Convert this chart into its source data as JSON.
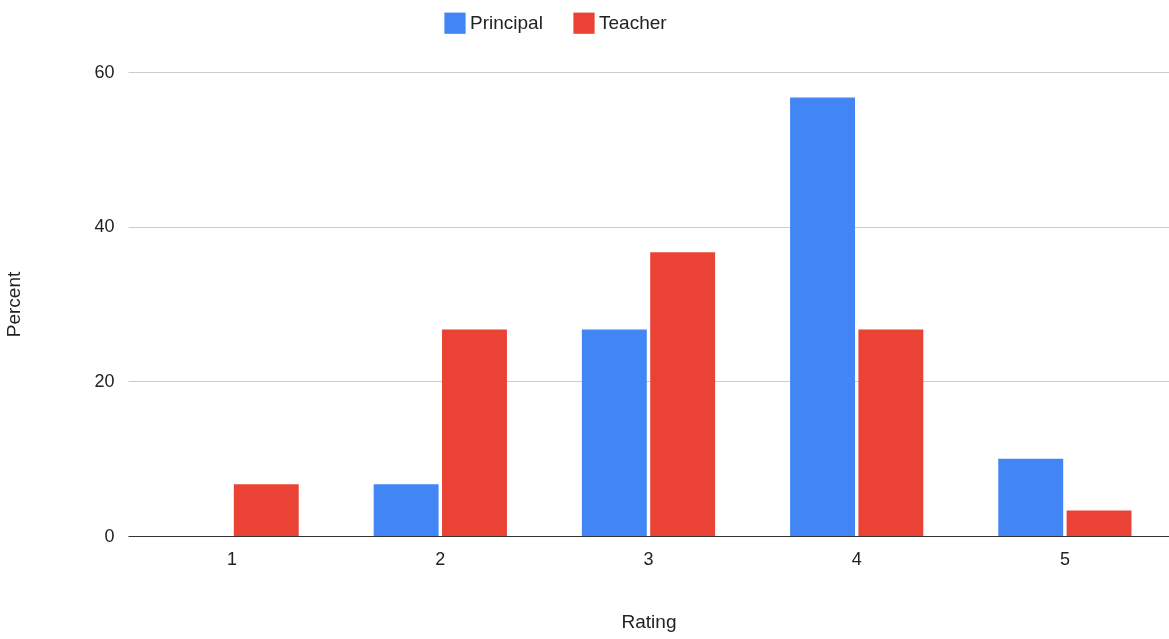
{
  "chart_data": {
    "type": "bar",
    "xlabel": "Rating",
    "ylabel": "Percent",
    "categories": [
      "1",
      "2",
      "3",
      "4",
      "5"
    ],
    "series": [
      {
        "name": "Principal",
        "color": "#4285f4",
        "values": [
          0,
          6.7,
          26.7,
          56.7,
          10
        ]
      },
      {
        "name": "Teacher",
        "color": "#ea4335",
        "values": [
          6.7,
          26.7,
          36.7,
          26.7,
          3.3
        ]
      }
    ],
    "ylim": [
      0,
      60
    ],
    "yticks": [
      0,
      20,
      40,
      60
    ],
    "grid": "y",
    "legend": "top"
  }
}
